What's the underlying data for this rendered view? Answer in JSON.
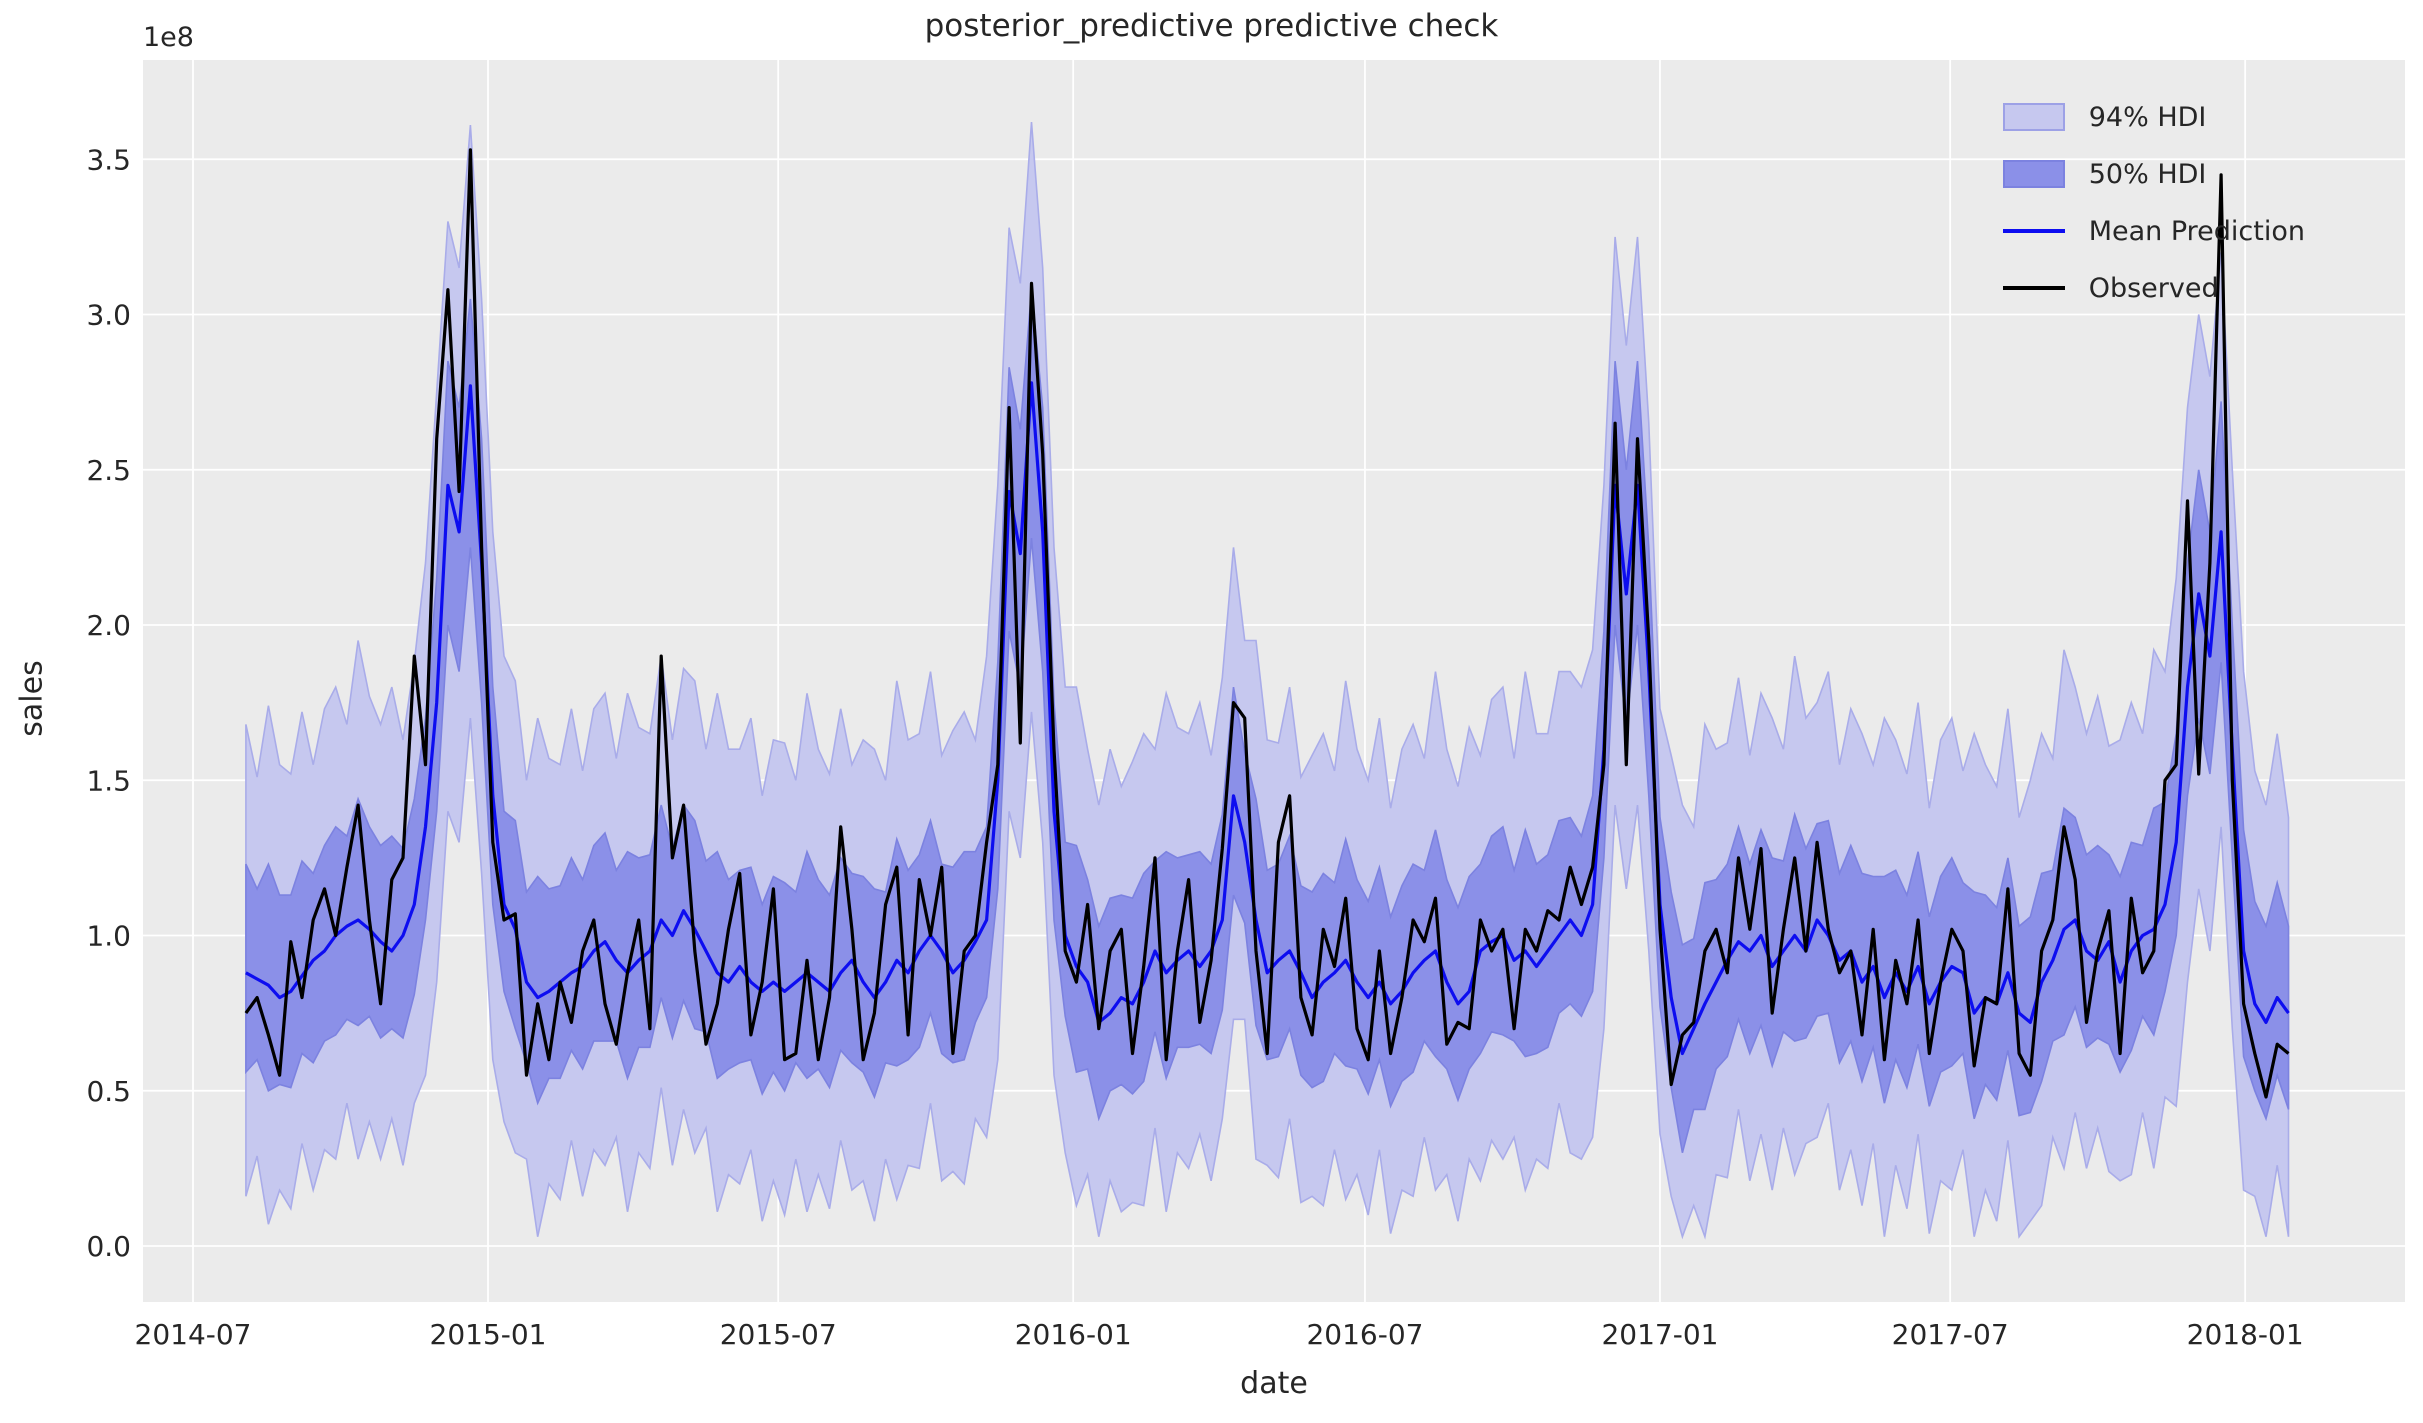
{
  "figure": {
    "title": "posterior_predictive predictive check",
    "xlabel": "date",
    "ylabel": "sales",
    "y_offset_text": "1e8"
  },
  "legend": {
    "items": [
      {
        "label": "94% HDI",
        "swatch": "patch",
        "fill": "#c6c8ef",
        "stroke": "#9da1e6"
      },
      {
        "label": "50% HDI",
        "swatch": "patch",
        "fill": "#8b90e8",
        "stroke": "#7c82e0"
      },
      {
        "label": "Mean Prediction",
        "swatch": "line",
        "stroke": "#0d0df0"
      },
      {
        "label": "Observed",
        "swatch": "line",
        "stroke": "#000000"
      }
    ]
  },
  "chart_data": {
    "type": "line",
    "title": "posterior_predictive predictive check",
    "xlabel": "date",
    "ylabel": "sales",
    "y_unit_multiplier": "1e8",
    "x_start_date": "2014-08-03",
    "x_step_days": 7,
    "x_axis": {
      "origin_date": "2014-07-01",
      "tick_dates": [
        "2014-07-01",
        "2015-01-01",
        "2015-07-01",
        "2016-01-01",
        "2016-07-01",
        "2017-01-01",
        "2017-07-01",
        "2018-01-01"
      ],
      "tick_labels": [
        "2014-07",
        "2015-01",
        "2015-07",
        "2016-01",
        "2016-07",
        "2017-01",
        "2017-07",
        "2018-01"
      ]
    },
    "y_axis": {
      "ticks": [
        0.0,
        0.5,
        1.0,
        1.5,
        2.0,
        2.5,
        3.0,
        3.5
      ],
      "tick_labels": [
        "0.0",
        "0.5",
        "1.0",
        "1.5",
        "2.0",
        "2.5",
        "3.0",
        "3.5"
      ],
      "ylim": [
        -0.18,
        3.82
      ]
    },
    "grid": true,
    "plot_bg": "#ebebeb",
    "grid_color": "#ffffff",
    "legend_position": "upper right",
    "series": [
      {
        "name": "Observed",
        "style": "line",
        "color": "#000000",
        "values": [
          0.75,
          0.8,
          0.68,
          0.55,
          0.98,
          0.8,
          1.05,
          1.15,
          1.0,
          1.22,
          1.42,
          1.05,
          0.78,
          1.18,
          1.25,
          1.9,
          1.55,
          2.6,
          3.08,
          2.43,
          3.53,
          2.25,
          1.3,
          1.05,
          1.07,
          0.55,
          0.78,
          0.6,
          0.85,
          0.72,
          0.95,
          1.05,
          0.78,
          0.65,
          0.88,
          1.05,
          0.7,
          1.9,
          1.25,
          1.42,
          0.95,
          0.65,
          0.78,
          1.02,
          1.2,
          0.68,
          0.85,
          1.15,
          0.6,
          0.62,
          0.92,
          0.6,
          0.8,
          1.35,
          1.02,
          0.6,
          0.75,
          1.1,
          1.22,
          0.68,
          1.18,
          1.0,
          1.22,
          0.62,
          0.95,
          1.0,
          1.3,
          1.55,
          2.7,
          1.62,
          3.1,
          2.55,
          1.6,
          0.95,
          0.85,
          1.1,
          0.7,
          0.95,
          1.02,
          0.62,
          0.9,
          1.25,
          0.6,
          0.95,
          1.18,
          0.72,
          0.92,
          1.28,
          1.75,
          1.7,
          0.95,
          0.62,
          1.3,
          1.45,
          0.8,
          0.68,
          1.02,
          0.9,
          1.12,
          0.7,
          0.6,
          0.95,
          0.62,
          0.8,
          1.05,
          0.98,
          1.12,
          0.65,
          0.72,
          0.7,
          1.05,
          0.95,
          1.02,
          0.7,
          1.02,
          0.95,
          1.08,
          1.05,
          1.22,
          1.1,
          1.22,
          1.55,
          2.65,
          1.55,
          2.6,
          1.95,
          1.02,
          0.52,
          0.68,
          0.72,
          0.95,
          1.02,
          0.88,
          1.25,
          1.02,
          1.28,
          0.75,
          1.02,
          1.25,
          0.95,
          1.3,
          1.02,
          0.88,
          0.95,
          0.68,
          1.02,
          0.6,
          0.92,
          0.78,
          1.05,
          0.62,
          0.85,
          1.02,
          0.95,
          0.58,
          0.8,
          0.78,
          1.15,
          0.62,
          0.55,
          0.95,
          1.05,
          1.35,
          1.18,
          0.72,
          0.95,
          1.08,
          0.62,
          1.12,
          0.88,
          0.95,
          1.5,
          1.55,
          2.4,
          1.52,
          2.2,
          3.45,
          1.5,
          0.78,
          0.62,
          0.48,
          0.65,
          0.62
        ]
      },
      {
        "name": "Mean Prediction",
        "style": "line",
        "color": "#0d0df0",
        "values": [
          0.88,
          0.86,
          0.84,
          0.8,
          0.82,
          0.87,
          0.92,
          0.95,
          1.0,
          1.03,
          1.05,
          1.02,
          0.98,
          0.95,
          1.0,
          1.1,
          1.35,
          1.75,
          2.45,
          2.3,
          2.77,
          2.2,
          1.45,
          1.1,
          1.02,
          0.85,
          0.8,
          0.82,
          0.85,
          0.88,
          0.9,
          0.95,
          0.98,
          0.92,
          0.88,
          0.92,
          0.95,
          1.05,
          1.0,
          1.08,
          1.02,
          0.95,
          0.88,
          0.85,
          0.9,
          0.85,
          0.82,
          0.85,
          0.82,
          0.85,
          0.88,
          0.85,
          0.82,
          0.88,
          0.92,
          0.85,
          0.8,
          0.85,
          0.92,
          0.88,
          0.95,
          1.0,
          0.95,
          0.88,
          0.92,
          0.98,
          1.05,
          1.5,
          2.43,
          2.23,
          2.78,
          2.3,
          1.4,
          1.0,
          0.9,
          0.85,
          0.72,
          0.75,
          0.8,
          0.78,
          0.85,
          0.95,
          0.88,
          0.92,
          0.95,
          0.9,
          0.95,
          1.05,
          1.45,
          1.3,
          1.05,
          0.88,
          0.92,
          0.95,
          0.88,
          0.8,
          0.85,
          0.88,
          0.92,
          0.85,
          0.8,
          0.85,
          0.78,
          0.82,
          0.88,
          0.92,
          0.95,
          0.85,
          0.78,
          0.82,
          0.95,
          0.98,
          1.0,
          0.92,
          0.95,
          0.9,
          0.95,
          1.0,
          1.05,
          1.0,
          1.1,
          1.6,
          2.45,
          2.1,
          2.45,
          1.85,
          1.1,
          0.8,
          0.62,
          0.7,
          0.78,
          0.85,
          0.92,
          0.98,
          0.95,
          1.0,
          0.9,
          0.95,
          1.0,
          0.95,
          1.05,
          1.0,
          0.92,
          0.95,
          0.85,
          0.9,
          0.8,
          0.88,
          0.82,
          0.9,
          0.78,
          0.85,
          0.9,
          0.88,
          0.75,
          0.8,
          0.78,
          0.88,
          0.75,
          0.72,
          0.85,
          0.92,
          1.02,
          1.05,
          0.95,
          0.92,
          0.98,
          0.85,
          0.95,
          1.0,
          1.02,
          1.1,
          1.3,
          1.8,
          2.1,
          1.9,
          2.3,
          1.6,
          0.95,
          0.78,
          0.72,
          0.8,
          0.75
        ]
      },
      {
        "name": "94% HDI",
        "style": "band",
        "fill": "#c6c8ef",
        "edge": "#a9ace9",
        "lower": [
          0.16,
          0.29,
          0.07,
          0.18,
          0.12,
          0.33,
          0.18,
          0.31,
          0.28,
          0.46,
          0.28,
          0.4,
          0.28,
          0.41,
          0.26,
          0.46,
          0.55,
          0.85,
          1.4,
          1.3,
          1.7,
          1.2,
          0.6,
          0.4,
          0.3,
          0.28,
          0.03,
          0.2,
          0.15,
          0.34,
          0.16,
          0.31,
          0.26,
          0.35,
          0.11,
          0.3,
          0.25,
          0.51,
          0.26,
          0.44,
          0.3,
          0.38,
          0.11,
          0.23,
          0.2,
          0.31,
          0.08,
          0.21,
          0.1,
          0.28,
          0.11,
          0.23,
          0.12,
          0.34,
          0.18,
          0.21,
          0.08,
          0.28,
          0.15,
          0.26,
          0.25,
          0.46,
          0.21,
          0.24,
          0.2,
          0.41,
          0.35,
          0.6,
          1.4,
          1.25,
          1.72,
          1.3,
          0.55,
          0.3,
          0.13,
          0.23,
          0.03,
          0.21,
          0.11,
          0.14,
          0.13,
          0.38,
          0.11,
          0.3,
          0.25,
          0.36,
          0.21,
          0.41,
          0.73,
          0.73,
          0.28,
          0.26,
          0.22,
          0.41,
          0.14,
          0.16,
          0.13,
          0.31,
          0.15,
          0.23,
          0.1,
          0.31,
          0.04,
          0.18,
          0.16,
          0.35,
          0.18,
          0.23,
          0.08,
          0.28,
          0.21,
          0.34,
          0.28,
          0.35,
          0.18,
          0.28,
          0.25,
          0.46,
          0.3,
          0.28,
          0.35,
          0.7,
          1.42,
          1.15,
          1.42,
          0.95,
          0.36,
          0.16,
          0.03,
          0.13,
          0.03,
          0.23,
          0.22,
          0.44,
          0.21,
          0.36,
          0.18,
          0.38,
          0.23,
          0.33,
          0.35,
          0.46,
          0.18,
          0.31,
          0.13,
          0.33,
          0.03,
          0.26,
          0.12,
          0.36,
          0.04,
          0.21,
          0.18,
          0.31,
          0.03,
          0.18,
          0.08,
          0.34,
          0.03,
          0.08,
          0.13,
          0.35,
          0.25,
          0.43,
          0.25,
          0.38,
          0.24,
          0.21,
          0.23,
          0.43,
          0.25,
          0.48,
          0.45,
          0.85,
          1.15,
          0.95,
          1.35,
          0.7,
          0.18,
          0.16,
          0.03,
          0.26,
          0.03
        ],
        "upper": [
          1.68,
          1.51,
          1.74,
          1.55,
          1.52,
          1.72,
          1.55,
          1.73,
          1.8,
          1.68,
          1.95,
          1.77,
          1.68,
          1.8,
          1.63,
          1.88,
          2.2,
          2.75,
          3.3,
          3.15,
          3.61,
          3.05,
          2.3,
          1.9,
          1.82,
          1.5,
          1.7,
          1.57,
          1.55,
          1.73,
          1.53,
          1.73,
          1.78,
          1.57,
          1.78,
          1.67,
          1.65,
          1.9,
          1.63,
          1.86,
          1.82,
          1.6,
          1.78,
          1.6,
          1.6,
          1.7,
          1.45,
          1.63,
          1.62,
          1.5,
          1.78,
          1.6,
          1.52,
          1.73,
          1.55,
          1.63,
          1.6,
          1.5,
          1.82,
          1.63,
          1.65,
          1.85,
          1.58,
          1.66,
          1.72,
          1.63,
          1.9,
          2.45,
          3.28,
          3.1,
          3.62,
          3.15,
          2.25,
          1.8,
          1.8,
          1.6,
          1.42,
          1.6,
          1.48,
          1.56,
          1.65,
          1.6,
          1.78,
          1.67,
          1.65,
          1.75,
          1.58,
          1.83,
          2.25,
          1.95,
          1.95,
          1.63,
          1.62,
          1.8,
          1.51,
          1.58,
          1.65,
          1.53,
          1.82,
          1.6,
          1.5,
          1.7,
          1.41,
          1.6,
          1.68,
          1.57,
          1.85,
          1.6,
          1.48,
          1.67,
          1.58,
          1.76,
          1.8,
          1.57,
          1.85,
          1.65,
          1.65,
          1.85,
          1.85,
          1.8,
          1.92,
          2.45,
          3.25,
          2.9,
          3.25,
          2.65,
          1.73,
          1.58,
          1.42,
          1.35,
          1.68,
          1.6,
          1.62,
          1.83,
          1.58,
          1.78,
          1.7,
          1.6,
          1.9,
          1.7,
          1.75,
          1.85,
          1.55,
          1.73,
          1.65,
          1.55,
          1.7,
          1.63,
          1.52,
          1.75,
          1.41,
          1.63,
          1.7,
          1.53,
          1.65,
          1.55,
          1.48,
          1.73,
          1.38,
          1.5,
          1.65,
          1.57,
          1.92,
          1.8,
          1.65,
          1.77,
          1.61,
          1.63,
          1.75,
          1.65,
          1.92,
          1.85,
          2.15,
          2.7,
          3.0,
          2.8,
          3.2,
          2.5,
          1.85,
          1.53,
          1.42,
          1.65,
          1.38
        ]
      },
      {
        "name": "50% HDI",
        "style": "band",
        "fill": "#8b90e8",
        "edge": "#7c82e0",
        "lower": [
          0.56,
          0.6,
          0.5,
          0.52,
          0.51,
          0.62,
          0.59,
          0.66,
          0.68,
          0.73,
          0.71,
          0.74,
          0.67,
          0.7,
          0.67,
          0.81,
          1.05,
          1.4,
          2.0,
          1.85,
          2.25,
          1.75,
          1.1,
          0.82,
          0.7,
          0.59,
          0.46,
          0.54,
          0.54,
          0.63,
          0.57,
          0.66,
          0.66,
          0.66,
          0.54,
          0.64,
          0.64,
          0.8,
          0.67,
          0.79,
          0.7,
          0.69,
          0.54,
          0.57,
          0.59,
          0.6,
          0.49,
          0.56,
          0.5,
          0.59,
          0.54,
          0.57,
          0.51,
          0.63,
          0.59,
          0.56,
          0.48,
          0.59,
          0.58,
          0.6,
          0.64,
          0.75,
          0.62,
          0.59,
          0.6,
          0.72,
          0.8,
          1.15,
          1.98,
          1.8,
          2.28,
          1.85,
          1.05,
          0.74,
          0.56,
          0.57,
          0.41,
          0.5,
          0.52,
          0.49,
          0.53,
          0.69,
          0.54,
          0.64,
          0.64,
          0.65,
          0.62,
          0.76,
          1.13,
          1.04,
          0.71,
          0.6,
          0.61,
          0.7,
          0.55,
          0.51,
          0.53,
          0.62,
          0.58,
          0.57,
          0.49,
          0.6,
          0.45,
          0.53,
          0.56,
          0.66,
          0.61,
          0.57,
          0.47,
          0.57,
          0.62,
          0.69,
          0.68,
          0.66,
          0.61,
          0.62,
          0.64,
          0.75,
          0.78,
          0.74,
          0.82,
          1.25,
          2.0,
          1.68,
          2.0,
          1.45,
          0.77,
          0.51,
          0.3,
          0.44,
          0.44,
          0.57,
          0.61,
          0.73,
          0.62,
          0.71,
          0.58,
          0.69,
          0.66,
          0.67,
          0.74,
          0.75,
          0.59,
          0.66,
          0.53,
          0.64,
          0.46,
          0.6,
          0.51,
          0.65,
          0.45,
          0.56,
          0.58,
          0.62,
          0.41,
          0.52,
          0.47,
          0.63,
          0.42,
          0.43,
          0.53,
          0.66,
          0.68,
          0.77,
          0.64,
          0.67,
          0.65,
          0.56,
          0.63,
          0.74,
          0.68,
          0.82,
          1.0,
          1.45,
          1.7,
          1.52,
          1.88,
          1.25,
          0.61,
          0.5,
          0.41,
          0.55,
          0.44
        ],
        "upper": [
          1.23,
          1.15,
          1.23,
          1.13,
          1.13,
          1.24,
          1.2,
          1.29,
          1.35,
          1.32,
          1.44,
          1.35,
          1.29,
          1.32,
          1.28,
          1.44,
          1.7,
          2.15,
          2.85,
          2.7,
          3.05,
          2.6,
          1.8,
          1.4,
          1.37,
          1.14,
          1.19,
          1.15,
          1.16,
          1.25,
          1.18,
          1.29,
          1.33,
          1.21,
          1.27,
          1.25,
          1.26,
          1.42,
          1.28,
          1.42,
          1.37,
          1.24,
          1.27,
          1.18,
          1.21,
          1.22,
          1.1,
          1.19,
          1.17,
          1.14,
          1.27,
          1.18,
          1.13,
          1.25,
          1.2,
          1.19,
          1.15,
          1.14,
          1.31,
          1.21,
          1.26,
          1.37,
          1.23,
          1.22,
          1.27,
          1.27,
          1.35,
          1.88,
          2.83,
          2.63,
          3.08,
          2.7,
          1.75,
          1.3,
          1.29,
          1.18,
          1.03,
          1.12,
          1.13,
          1.12,
          1.2,
          1.24,
          1.27,
          1.25,
          1.26,
          1.27,
          1.23,
          1.39,
          1.8,
          1.59,
          1.44,
          1.21,
          1.23,
          1.32,
          1.16,
          1.14,
          1.2,
          1.17,
          1.31,
          1.18,
          1.11,
          1.22,
          1.06,
          1.16,
          1.23,
          1.21,
          1.34,
          1.18,
          1.09,
          1.19,
          1.23,
          1.32,
          1.35,
          1.21,
          1.34,
          1.23,
          1.26,
          1.37,
          1.38,
          1.32,
          1.45,
          1.98,
          2.85,
          2.5,
          2.85,
          2.25,
          1.38,
          1.14,
          0.97,
          0.99,
          1.17,
          1.18,
          1.23,
          1.35,
          1.23,
          1.34,
          1.25,
          1.24,
          1.39,
          1.28,
          1.36,
          1.37,
          1.2,
          1.29,
          1.2,
          1.19,
          1.19,
          1.21,
          1.13,
          1.27,
          1.06,
          1.19,
          1.25,
          1.17,
          1.14,
          1.13,
          1.09,
          1.25,
          1.03,
          1.06,
          1.2,
          1.21,
          1.41,
          1.38,
          1.26,
          1.29,
          1.26,
          1.19,
          1.3,
          1.29,
          1.41,
          1.43,
          1.65,
          2.2,
          2.5,
          2.3,
          2.72,
          2.0,
          1.34,
          1.11,
          1.03,
          1.17,
          1.03
        ]
      }
    ]
  }
}
